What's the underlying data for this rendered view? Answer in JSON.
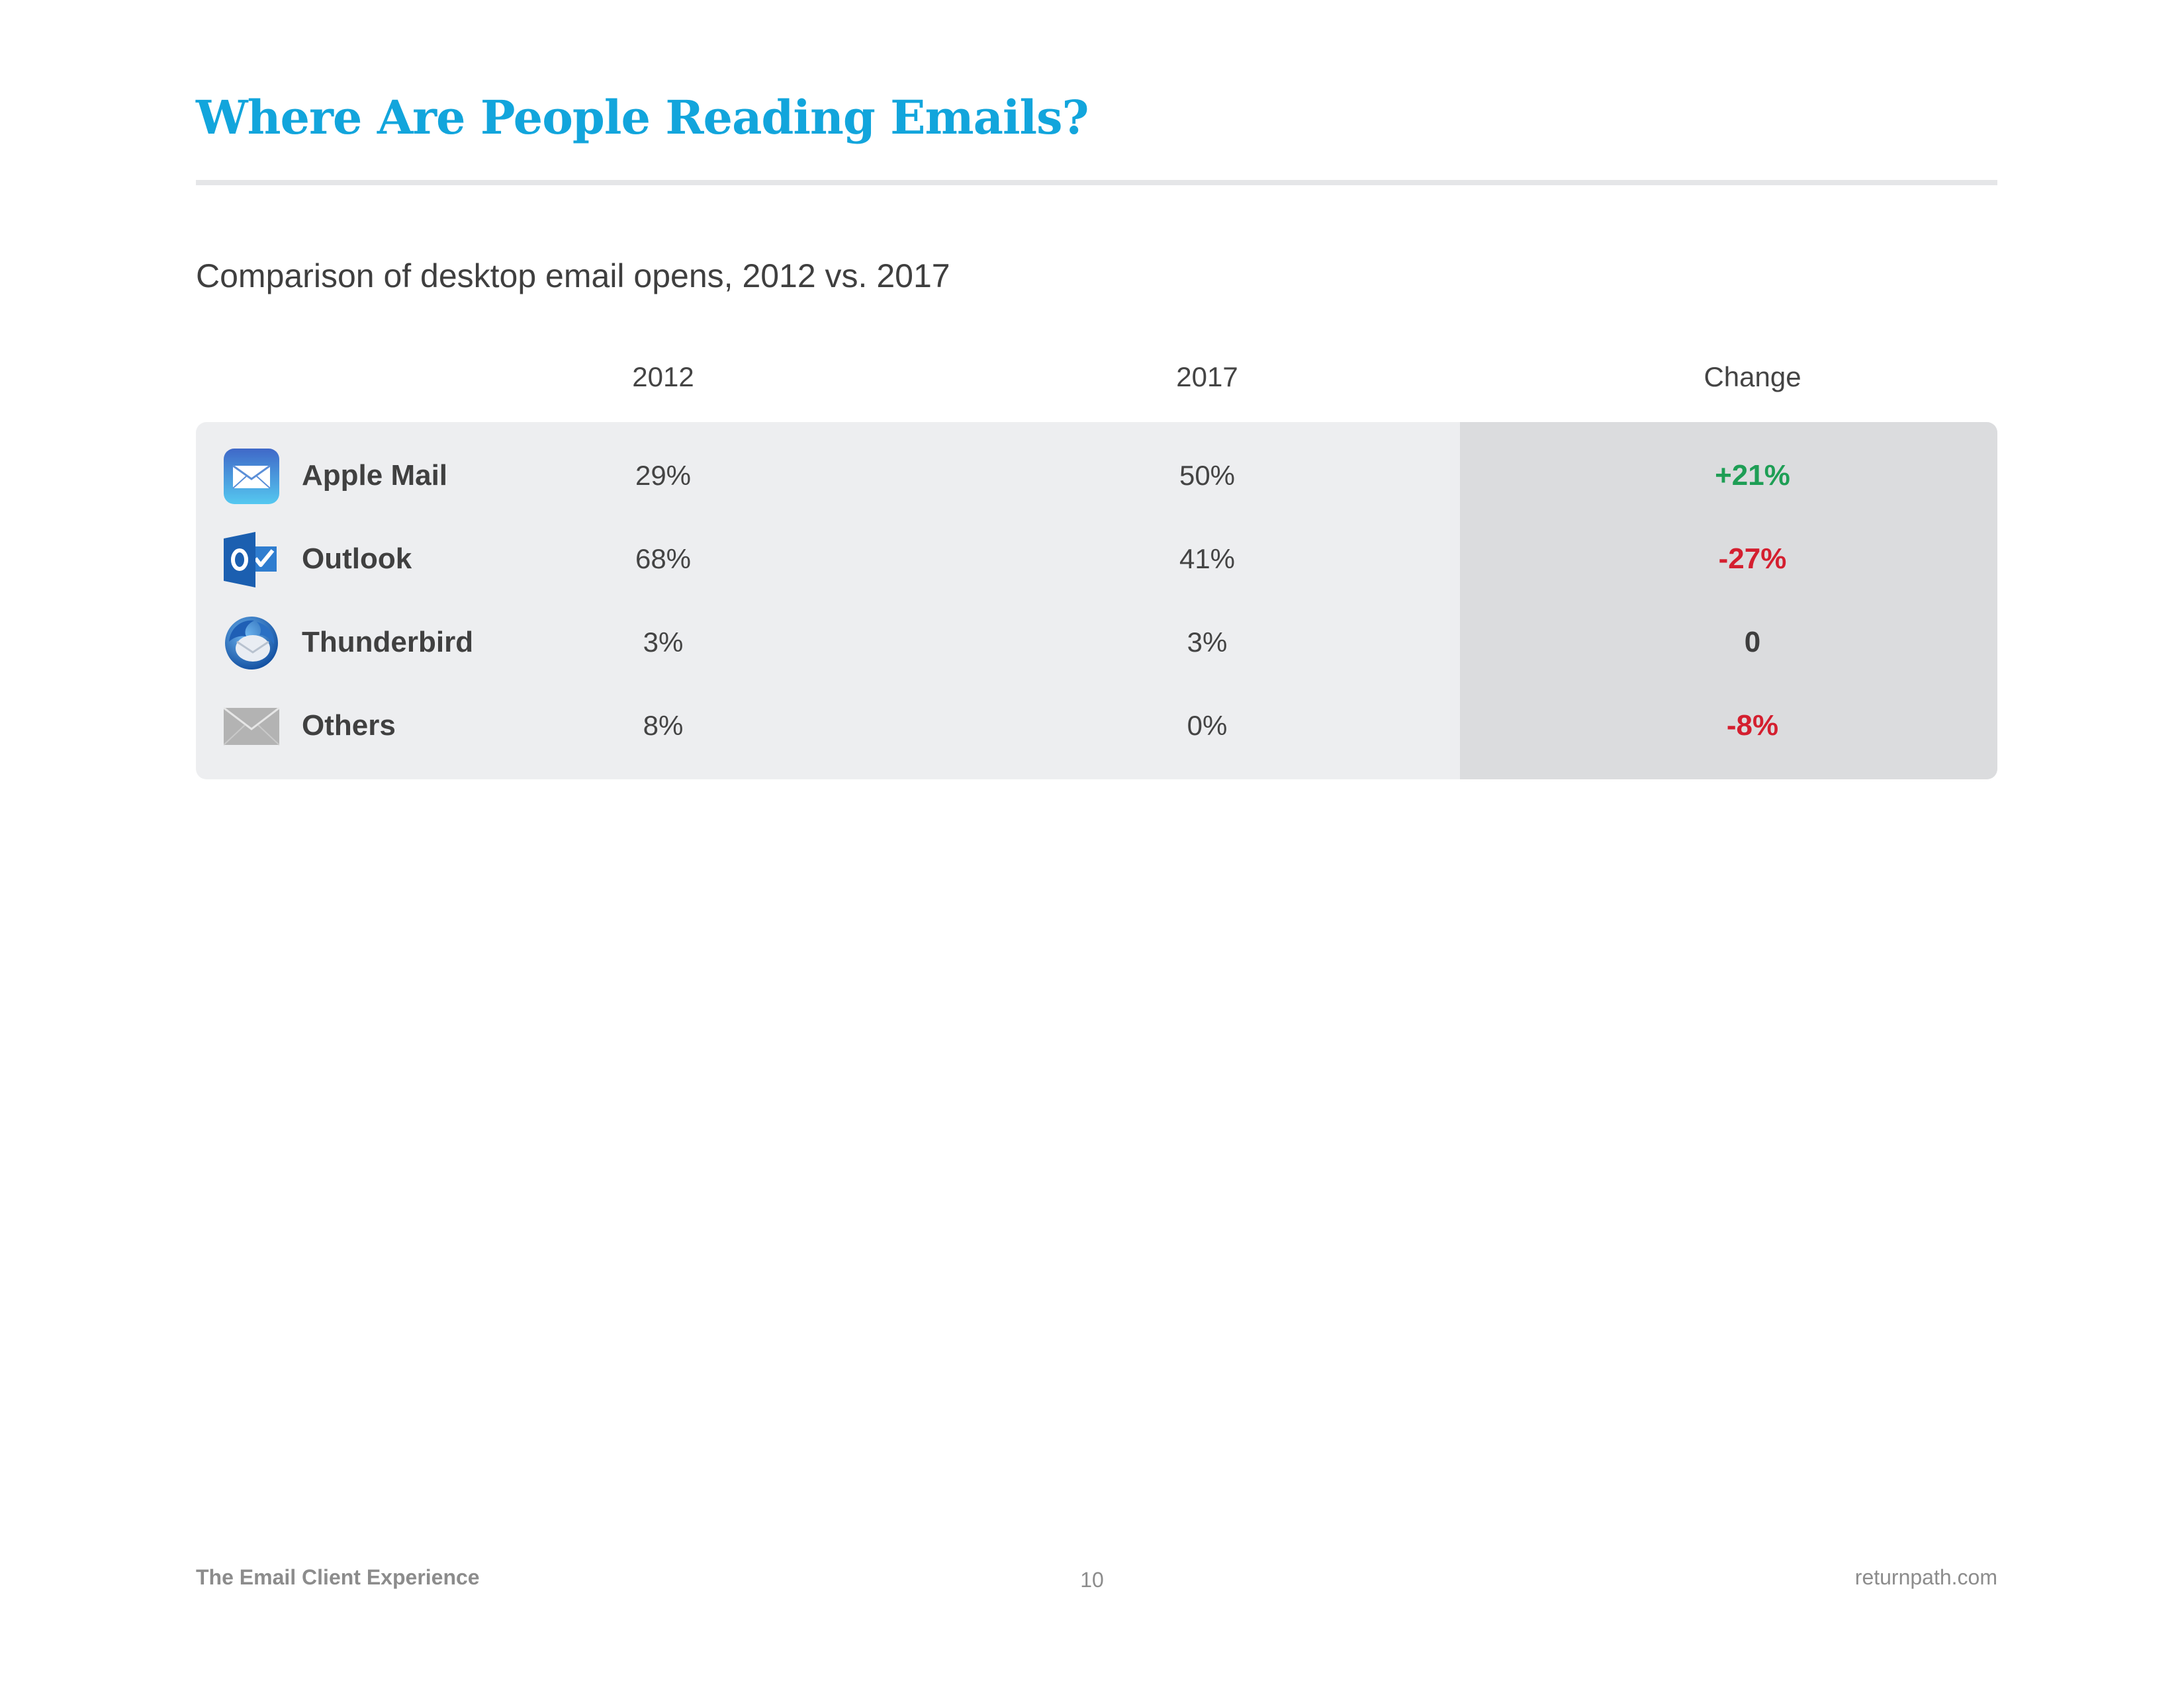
{
  "page": {
    "title": "Where Are People Reading Emails?",
    "subtitle": "Comparison of desktop email opens, 2012 vs. 2017"
  },
  "table": {
    "headers": {
      "col_2012": "2012",
      "col_2017": "2017",
      "col_change": "Change"
    },
    "rows": [
      {
        "icon": "apple-mail-icon",
        "client": "Apple Mail",
        "y2012": "29%",
        "y2017": "50%",
        "change": "+21%",
        "change_color": "#1e9e55"
      },
      {
        "icon": "outlook-icon",
        "client": "Outlook",
        "y2012": "68%",
        "y2017": "41%",
        "change": "-27%",
        "change_color": "#d41f2f"
      },
      {
        "icon": "thunderbird-icon",
        "client": "Thunderbird",
        "y2012": "3%",
        "y2017": "3%",
        "change": "0",
        "change_color": "#3d3d3d"
      },
      {
        "icon": "envelope-icon",
        "client": "Others",
        "y2012": "8%",
        "y2017": "0%",
        "change": "-8%",
        "change_color": "#d41f2f"
      }
    ]
  },
  "footer": {
    "left": "The Email Client Experience",
    "page_number": "10",
    "right": "returnpath.com"
  },
  "colors": {
    "title": "#12a5dc",
    "panel": "#edeef0",
    "change_panel": "#dbdcde",
    "positive": "#1e9e55",
    "negative": "#d41f2f"
  }
}
